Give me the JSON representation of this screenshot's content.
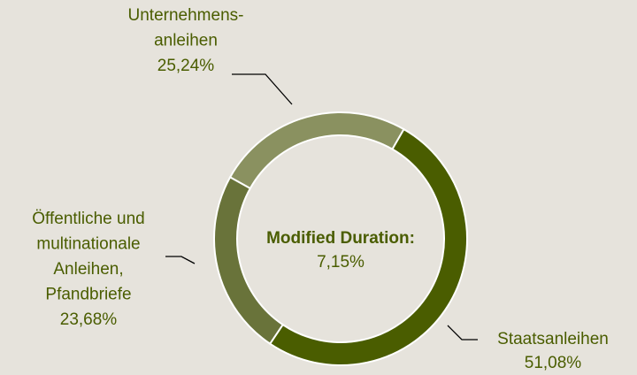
{
  "chart_data": {
    "type": "donut",
    "categories": [
      [
        "Staatsanleihen"
      ],
      [
        "Öffentliche  und",
        "multinationale",
        "Anleihen,",
        "Pfandbriefe"
      ],
      [
        "Unternehmens-",
        "anleihen"
      ]
    ],
    "values": [
      51.08,
      23.68,
      25.24
    ],
    "value_labels": [
      "51,08%",
      "23,68%",
      "25,24%"
    ],
    "colors": [
      "#4a5d00",
      "#69733a",
      "#8a9160"
    ],
    "center_title": "Modified Duration:",
    "center_value_label": "7,15%"
  }
}
